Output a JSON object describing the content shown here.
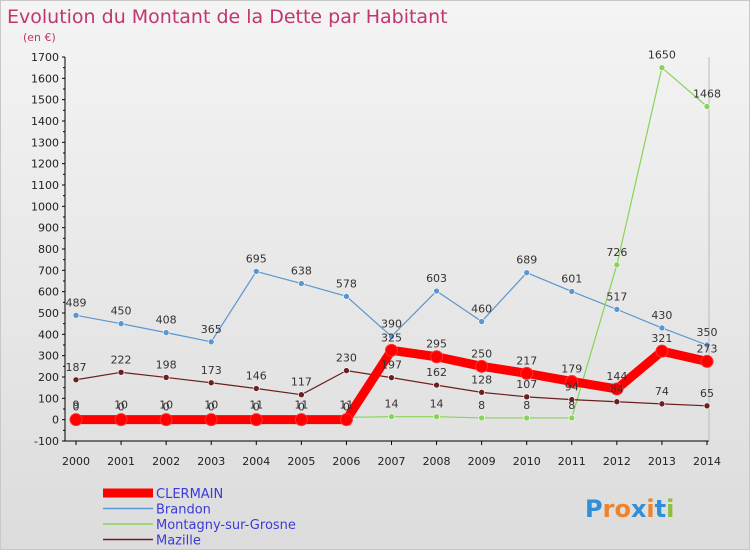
{
  "chart_data": {
    "type": "line",
    "title": "Evolution du Montant de la Dette par Habitant",
    "subtitle": "(en €)",
    "x": [
      "2000",
      "2001",
      "2002",
      "2003",
      "2004",
      "2005",
      "2006",
      "2007",
      "2008",
      "2009",
      "2010",
      "2011",
      "2012",
      "2013",
      "2014"
    ],
    "ylim": [
      -100,
      1700
    ],
    "yticks": [
      -100,
      0,
      100,
      200,
      300,
      400,
      500,
      600,
      700,
      800,
      900,
      1000,
      1100,
      1200,
      1300,
      1400,
      1500,
      1600,
      1700
    ],
    "grid": false,
    "legend_position": "bottom-left",
    "series": [
      {
        "name": "CLERMAIN",
        "color": "#ff0000",
        "values": [
          0,
          0,
          0,
          0,
          0,
          0,
          0,
          325,
          295,
          250,
          217,
          179,
          144,
          321,
          273
        ]
      },
      {
        "name": "Brandon",
        "color": "#5a96d0",
        "values": [
          489,
          450,
          408,
          365,
          695,
          638,
          578,
          390,
          603,
          460,
          689,
          601,
          517,
          430,
          350
        ]
      },
      {
        "name": "Montagny-sur-Grosne",
        "color": "#88d35a",
        "values": [
          9,
          10,
          10,
          10,
          11,
          11,
          11,
          14,
          14,
          8,
          8,
          8,
          726,
          1650,
          1468
        ]
      },
      {
        "name": "Mazille",
        "color": "#6b1f1f",
        "values": [
          187,
          222,
          198,
          173,
          146,
          117,
          230,
          197,
          162,
          128,
          107,
          94,
          84,
          74,
          65
        ]
      }
    ]
  },
  "logo": {
    "text": "Proxiti",
    "letters": [
      "P",
      "r",
      "o",
      "x",
      "i",
      "t",
      "i"
    ],
    "colors": [
      "#2f8fd8",
      "#f0822a",
      "#f0822a",
      "#2f8fd8",
      "#f0822a",
      "#2f8fd8",
      "#88c040"
    ]
  }
}
